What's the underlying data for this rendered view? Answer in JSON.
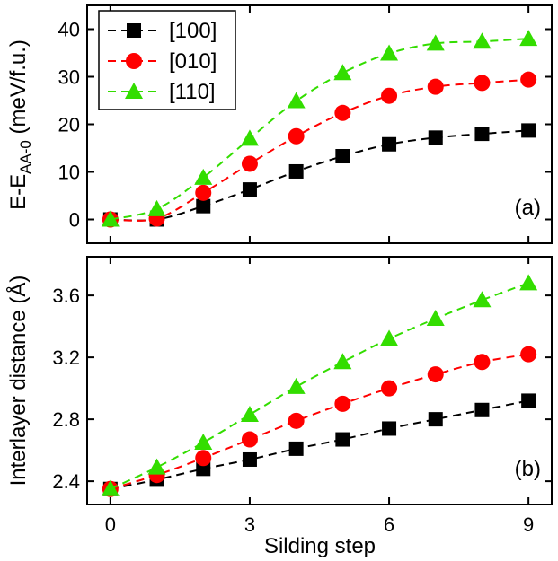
{
  "chart_data": [
    {
      "panel": "(a)",
      "type": "line",
      "x": [
        0,
        1,
        2,
        3,
        4,
        5,
        6,
        7,
        8,
        9
      ],
      "xlim": [
        -0.5,
        9.5
      ],
      "xticks": [
        0,
        3,
        6,
        9
      ],
      "ylim": [
        -5,
        45
      ],
      "yticks": [
        0,
        10,
        20,
        30,
        40
      ],
      "ylabel_main": "E-E",
      "ylabel_sub": "AA-0",
      "ylabel_unit": " (meV/f.u.)",
      "grid": false,
      "legend_position": "top-left",
      "series": [
        {
          "name": "[100]",
          "color": "#000000",
          "marker": "square",
          "values": [
            0,
            0,
            2.8,
            6.3,
            10.1,
            13.3,
            15.8,
            17.2,
            18.0,
            18.7
          ]
        },
        {
          "name": "[010]",
          "color": "#ff0000",
          "marker": "circle",
          "values": [
            0,
            0.2,
            5.6,
            11.7,
            17.5,
            22.4,
            26.0,
            27.9,
            28.7,
            29.4
          ]
        },
        {
          "name": "[110]",
          "color": "#33dd00",
          "marker": "triangle",
          "values": [
            0,
            2.2,
            8.8,
            17.0,
            24.9,
            30.8,
            34.9,
            37.0,
            37.4,
            38.0
          ]
        }
      ]
    },
    {
      "panel": "(b)",
      "type": "line",
      "x": [
        0,
        1,
        2,
        3,
        4,
        5,
        6,
        7,
        8,
        9
      ],
      "xlim": [
        -0.5,
        9.5
      ],
      "xticks": [
        0,
        3,
        6,
        9
      ],
      "xlabel": "Silding step",
      "ylim": [
        2.25,
        3.85
      ],
      "yticks": [
        "2.4",
        "2.8",
        "3.2",
        "3.6"
      ],
      "ylabel": "Interlayer distance (Å)",
      "grid": false,
      "series": [
        {
          "name": "[100]",
          "color": "#000000",
          "marker": "square",
          "values": [
            2.35,
            2.41,
            2.48,
            2.54,
            2.61,
            2.67,
            2.74,
            2.8,
            2.86,
            2.92
          ]
        },
        {
          "name": "[010]",
          "color": "#ff0000",
          "marker": "circle",
          "values": [
            2.35,
            2.44,
            2.55,
            2.67,
            2.79,
            2.9,
            3.0,
            3.09,
            3.17,
            3.22
          ]
        },
        {
          "name": "[110]",
          "color": "#33dd00",
          "marker": "triangle",
          "values": [
            2.35,
            2.49,
            2.65,
            2.83,
            3.01,
            3.17,
            3.32,
            3.45,
            3.57,
            3.68
          ]
        }
      ]
    }
  ]
}
